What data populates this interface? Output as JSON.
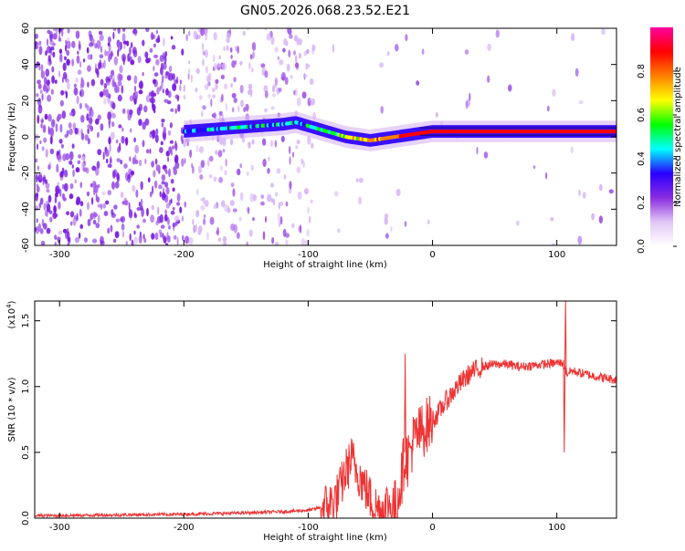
{
  "figure": {
    "title": "GN05.2026.068.23.52.E21"
  },
  "chart_data": [
    {
      "type": "heatmap",
      "name": "spectrogram",
      "xlabel": "Height of straight line (km)",
      "ylabel": "Frequency (Hz)",
      "xlim": [
        -320,
        148
      ],
      "ylim": [
        -60,
        60
      ],
      "xticks": [
        -300,
        -200,
        -100,
        0,
        100
      ],
      "yticks": [
        -60,
        -40,
        -20,
        0,
        20,
        40,
        60
      ],
      "colorbar": {
        "label": "Normalized spectral amplitude",
        "range": [
          0,
          1
        ],
        "ticks": [
          0.0,
          0.2,
          0.4,
          0.6,
          0.8
        ],
        "colors": [
          "#ffffff",
          "#e2c8f5",
          "#8a2be2",
          "#2a00ff",
          "#00ffff",
          "#00ff00",
          "#ffff00",
          "#ff8000",
          "#ff0000",
          "#ff00a0"
        ]
      },
      "ridge": {
        "x": [
          -200,
          -180,
          -160,
          -140,
          -120,
          -110,
          -100,
          -90,
          -80,
          -70,
          -60,
          -50,
          -40,
          -30,
          -20,
          -10,
          0,
          20,
          50,
          100,
          148
        ],
        "freq": [
          3,
          4,
          5,
          6,
          7,
          8,
          6,
          4,
          2,
          0,
          -1,
          -2,
          -1,
          0,
          1,
          2,
          3,
          3,
          3,
          3,
          3
        ],
        "amplitude": [
          0.38,
          0.4,
          0.42,
          0.44,
          0.4,
          0.42,
          0.45,
          0.5,
          0.55,
          0.6,
          0.68,
          0.72,
          0.78,
          0.82,
          0.86,
          0.88,
          0.9,
          0.92,
          0.93,
          0.92,
          0.9
        ]
      }
    },
    {
      "type": "line",
      "name": "snr",
      "xlabel": "Height of straight line (km)",
      "ylabel": "SNR (10 * v/v)",
      "scale_label": "(x10",
      "scale_exponent": "4",
      "xlim": [
        -320,
        148
      ],
      "ylim": [
        0,
        1.65
      ],
      "xticks": [
        -300,
        -200,
        -100,
        0,
        100
      ],
      "yticks": [
        0.0,
        0.5,
        1.0,
        1.5
      ],
      "ytick_labels": [
        "0.0",
        "0.5",
        "1.0",
        "1.5"
      ],
      "color": "#ee3333",
      "series": [
        {
          "name": "SNR",
          "x": [
            -320,
            -300,
            -250,
            -200,
            -150,
            -120,
            -100,
            -90,
            -80,
            -75,
            -70,
            -65,
            -60,
            -55,
            -50,
            -45,
            -40,
            -35,
            -30,
            -25,
            -22,
            -20,
            -15,
            -10,
            -5,
            0,
            5,
            10,
            20,
            30,
            40,
            50,
            60,
            70,
            80,
            90,
            100,
            105,
            108,
            112,
            120,
            130,
            148
          ],
          "y": [
            0.02,
            0.02,
            0.025,
            0.03,
            0.04,
            0.05,
            0.06,
            0.08,
            0.12,
            0.2,
            0.35,
            0.45,
            0.35,
            0.25,
            0.15,
            0.08,
            0.06,
            0.1,
            0.08,
            0.3,
            0.5,
            0.45,
            0.6,
            0.65,
            0.7,
            0.75,
            0.8,
            0.88,
            1.0,
            1.1,
            1.15,
            1.17,
            1.17,
            1.15,
            1.16,
            1.17,
            1.18,
            1.18,
            1.1,
            1.12,
            1.1,
            1.08,
            1.05
          ]
        }
      ],
      "spikes": [
        {
          "x": -22,
          "y": 1.25
        },
        {
          "x": 107,
          "y": 1.65
        },
        {
          "x": 106,
          "y": 0.5
        },
        {
          "x": -65,
          "y": 0.6
        }
      ]
    }
  ]
}
